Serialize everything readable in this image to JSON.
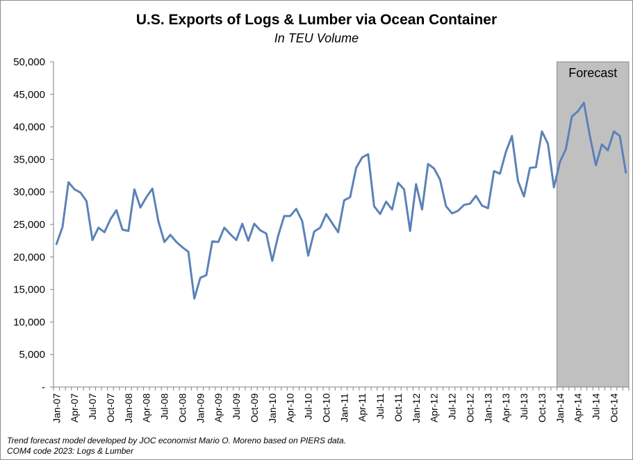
{
  "chart_data": {
    "type": "line",
    "title": "U.S. Exports of Logs & Lumber via Ocean Container",
    "subtitle": "In TEU Volume",
    "ylim": [
      0,
      50000
    ],
    "y_ticks": [
      "-",
      "5,000",
      "10,000",
      "15,000",
      "20,000",
      "25,000",
      "30,000",
      "35,000",
      "40,000",
      "45,000",
      "50,000"
    ],
    "x_start": "Jan-07",
    "x_tick_labels": [
      "Jan-07",
      "Apr-07",
      "Jul-07",
      "Oct-07",
      "Jan-08",
      "Apr-08",
      "Jul-08",
      "Oct-08",
      "Jan-09",
      "Apr-09",
      "Jul-09",
      "Oct-09",
      "Jan-10",
      "Apr-10",
      "Jul-10",
      "Oct-10",
      "Jan-11",
      "Apr-11",
      "Jul-11",
      "Oct-11",
      "Jan-12",
      "Apr-12",
      "Jul-12",
      "Oct-12",
      "Jan-13",
      "Apr-13",
      "Jul-13",
      "Oct-13",
      "Jan-14",
      "Apr-14",
      "Jul-14",
      "Oct-14"
    ],
    "grid": false,
    "forecast_label": "Forecast",
    "forecast_start": "Jan-14",
    "forecast_end": "Dec-14",
    "series": [
      {
        "color": "#5b82b8",
        "values": [
          22000,
          24600,
          31500,
          30400,
          29900,
          28600,
          22600,
          24500,
          23800,
          25800,
          27200,
          24200,
          24000,
          30400,
          27600,
          29200,
          30500,
          25500,
          22300,
          23400,
          22300,
          21500,
          20800,
          13600,
          16800,
          17200,
          22400,
          22300,
          24500,
          23500,
          22600,
          25100,
          22500,
          25100,
          24100,
          23600,
          19400,
          23300,
          26300,
          26300,
          27400,
          25500,
          20200,
          23900,
          24500,
          26600,
          25200,
          23800,
          28700,
          29200,
          33700,
          35300,
          35800,
          27800,
          26600,
          28500,
          27300,
          31400,
          30400,
          24000,
          31200,
          27300,
          34300,
          33600,
          31900,
          27800,
          26700,
          27100,
          28000,
          28200,
          29400,
          27900,
          27500,
          33200,
          32800,
          36200,
          38600,
          31700,
          29300,
          33700,
          33800,
          39300,
          37400,
          30700,
          34600,
          36600,
          41600,
          42400,
          43700,
          38600,
          34100,
          37300,
          36400,
          39300,
          38600,
          33000
        ]
      }
    ]
  },
  "footnotes": {
    "line1": "Trend forecast model developed  by JOC economist Mario O. Moreno based on PIERS data.",
    "line2": "COM4 code 2023: Logs & Lumber"
  }
}
